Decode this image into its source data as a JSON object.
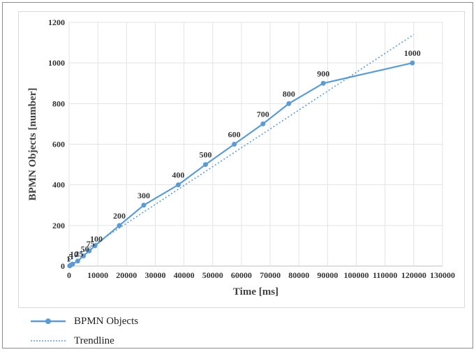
{
  "chart_data": {
    "type": "line",
    "xlabel": "Time [ms]",
    "ylabel": "BPMN Objects [number]",
    "xlim": [
      0,
      130000
    ],
    "ylim": [
      0,
      1200
    ],
    "x_ticks": [
      0,
      10000,
      20000,
      30000,
      40000,
      50000,
      60000,
      70000,
      80000,
      90000,
      100000,
      110000,
      120000,
      130000
    ],
    "y_ticks": [
      0,
      200,
      400,
      600,
      800,
      1000,
      1200
    ],
    "grid": true,
    "legend_position": "bottom",
    "series": [
      {
        "name": "BPMN Objects",
        "color": "#5b9bd5",
        "marker": "circle",
        "x": [
          200,
          600,
          1200,
          3000,
          5000,
          7000,
          9000,
          17500,
          26000,
          38000,
          47500,
          57500,
          67500,
          76500,
          88500,
          119500
        ],
        "y": [
          1,
          5,
          10,
          25,
          50,
          75,
          100,
          200,
          300,
          400,
          500,
          600,
          700,
          800,
          900,
          1000
        ],
        "labels": [
          "1",
          "5",
          "10",
          "25",
          "50",
          "75",
          "100",
          "200",
          "300",
          "400",
          "500",
          "600",
          "700",
          "800",
          "900",
          "1000"
        ]
      },
      {
        "name": "Trendline",
        "color": "#5b9bd5",
        "style": "dotted",
        "x": [
          0,
          120000
        ],
        "y": [
          25,
          1140
        ]
      }
    ]
  }
}
